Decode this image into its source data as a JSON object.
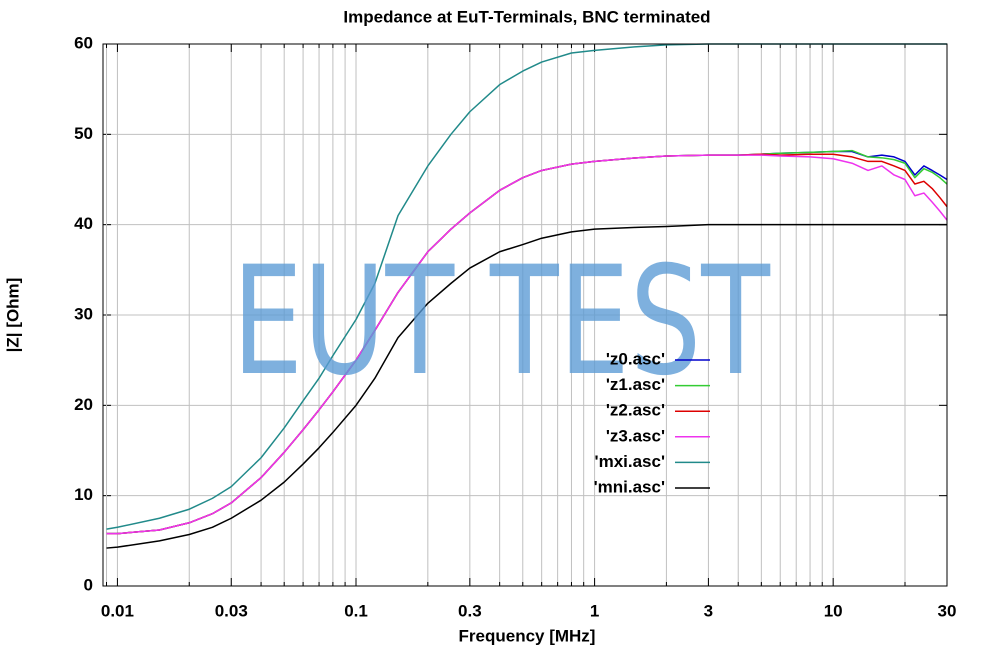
{
  "chart_data": {
    "type": "line",
    "title": "Impedance at EuT-Terminals, BNC terminated",
    "x_label": "Frequency [MHz]",
    "y_label": "|Z| [Ohm]",
    "watermark": "EUT TEST",
    "xlog": true,
    "grid": true,
    "legend": "center-right",
    "xlim": [
      0.0087,
      30
    ],
    "ylim": [
      0,
      60
    ],
    "xticks": [
      0.01,
      0.03,
      0.1,
      0.3,
      1,
      3,
      10,
      30
    ],
    "xminorticks": [
      0.009,
      0.02,
      0.04,
      0.05,
      0.06,
      0.07,
      0.08,
      0.09,
      0.2,
      0.4,
      0.5,
      0.6,
      0.7,
      0.8,
      0.9,
      2,
      4,
      5,
      6,
      7,
      8,
      9,
      20
    ],
    "yticks": [
      0,
      10,
      20,
      30,
      40,
      50,
      60
    ],
    "x": [
      0.009,
      0.01,
      0.015,
      0.02,
      0.025,
      0.03,
      0.04,
      0.05,
      0.06,
      0.07,
      0.08,
      0.1,
      0.12,
      0.15,
      0.2,
      0.25,
      0.3,
      0.4,
      0.5,
      0.6,
      0.8,
      1,
      1.5,
      2,
      3,
      4,
      5,
      6,
      8,
      10,
      12,
      14,
      16,
      18,
      20,
      22,
      24,
      26,
      28,
      30
    ],
    "series": [
      {
        "name": "'z0.asc'",
        "color": "#0000cc",
        "values": [
          5.8,
          5.8,
          6.2,
          7,
          8,
          9.2,
          12,
          14.8,
          17.3,
          19.5,
          21.5,
          25,
          28.3,
          32.5,
          37,
          39.5,
          41.3,
          43.8,
          45.2,
          46,
          46.7,
          47,
          47.4,
          47.6,
          47.7,
          47.7,
          47.8,
          47.9,
          48,
          48.1,
          48.1,
          47.5,
          47.7,
          47.5,
          47,
          45.5,
          46.5,
          46,
          45.5,
          45
        ]
      },
      {
        "name": "'z1.asc'",
        "color": "#33cc33",
        "values": [
          5.8,
          5.8,
          6.2,
          7,
          8,
          9.2,
          12,
          14.8,
          17.3,
          19.5,
          21.5,
          25,
          28.3,
          32.5,
          37,
          39.5,
          41.3,
          43.8,
          45.2,
          46,
          46.7,
          47,
          47.4,
          47.6,
          47.7,
          47.7,
          47.8,
          47.9,
          48,
          48.1,
          48.2,
          47.5,
          47.4,
          47.2,
          46.8,
          45.2,
          46.2,
          45.8,
          45.2,
          44.5
        ]
      },
      {
        "name": "'z2.asc'",
        "color": "#dd0000",
        "values": [
          5.8,
          5.8,
          6.2,
          7,
          8,
          9.2,
          12,
          14.8,
          17.3,
          19.5,
          21.5,
          25,
          28.3,
          32.5,
          37,
          39.5,
          41.3,
          43.8,
          45.2,
          46,
          46.7,
          47,
          47.4,
          47.6,
          47.7,
          47.7,
          47.8,
          47.7,
          47.8,
          47.8,
          47.5,
          47,
          47,
          46.5,
          46,
          44.5,
          44.8,
          44,
          43,
          42
        ]
      },
      {
        "name": "'z3.asc'",
        "color": "#ee33ee",
        "values": [
          5.8,
          5.8,
          6.2,
          7,
          8,
          9.2,
          12,
          14.8,
          17.3,
          19.5,
          21.5,
          25,
          28.3,
          32.5,
          37,
          39.5,
          41.3,
          43.8,
          45.2,
          46,
          46.7,
          47,
          47.4,
          47.6,
          47.7,
          47.7,
          47.7,
          47.6,
          47.5,
          47.3,
          46.8,
          46,
          46.5,
          45.5,
          45,
          43.2,
          43.5,
          42.5,
          41.5,
          40.5
        ]
      },
      {
        "name": "'mxi.asc'",
        "color": "#218a8a",
        "values": [
          6.3,
          6.5,
          7.5,
          8.5,
          9.7,
          11,
          14.2,
          17.5,
          20.5,
          23,
          25.5,
          29.5,
          33.5,
          41,
          46.5,
          50,
          52.5,
          55.5,
          57,
          58,
          59,
          59.3,
          59.7,
          59.9,
          60,
          60,
          60,
          60,
          60,
          60,
          60,
          60,
          60,
          60,
          60,
          60,
          60,
          60,
          60,
          60
        ]
      },
      {
        "name": "'mni.asc'",
        "color": "#000000",
        "values": [
          4.2,
          4.3,
          5,
          5.7,
          6.5,
          7.5,
          9.5,
          11.5,
          13.5,
          15.3,
          17,
          20,
          23,
          27.5,
          31.3,
          33.5,
          35.2,
          37,
          37.8,
          38.5,
          39.2,
          39.5,
          39.7,
          39.8,
          40,
          40,
          40,
          40,
          40,
          40,
          40,
          40,
          40,
          40,
          40,
          40,
          40,
          40,
          40,
          40
        ]
      }
    ]
  }
}
